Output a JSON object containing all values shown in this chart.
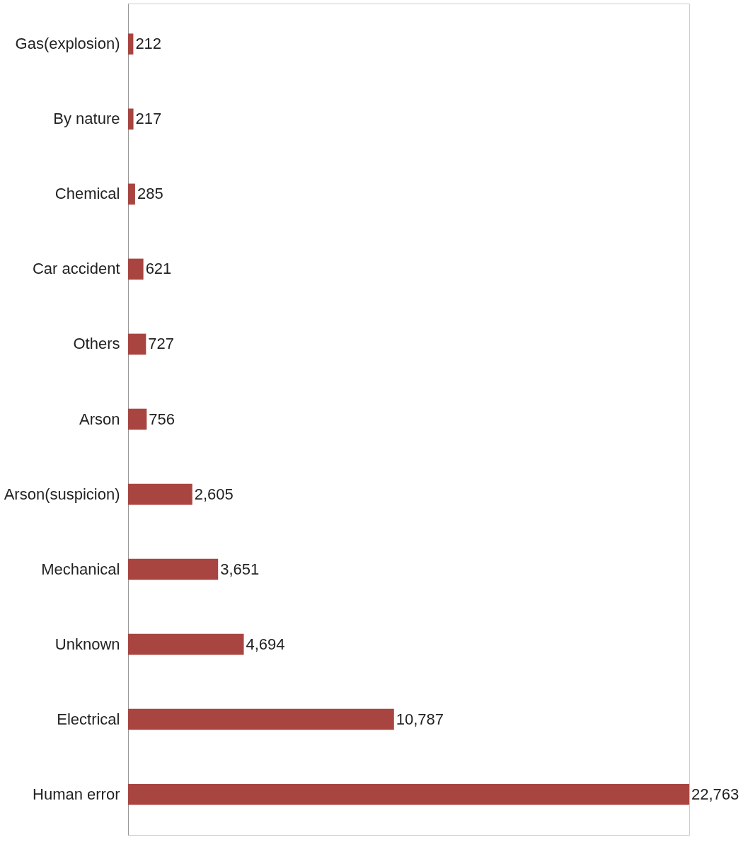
{
  "chart_data": {
    "type": "bar",
    "orientation": "horizontal",
    "categories": [
      "Gas(explosion)",
      "By nature",
      "Chemical",
      "Car accident",
      "Others",
      "Arson",
      "Arson(suspicion)",
      "Mechanical",
      "Unknown",
      "Electrical",
      "Human error"
    ],
    "values": [
      212,
      217,
      285,
      621,
      727,
      756,
      2605,
      3651,
      4694,
      10787,
      22763
    ],
    "value_labels": [
      "212",
      "217",
      "285",
      "621",
      "727",
      "756",
      "2,605",
      "3,651",
      "4,694",
      "10,787",
      "22,763"
    ],
    "color": "#a84541"
  }
}
